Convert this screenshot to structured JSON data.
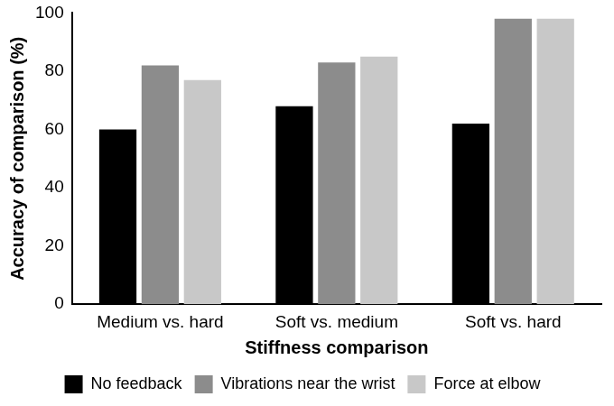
{
  "chart_data": {
    "type": "bar",
    "x_label": "Stiffness comparison",
    "y_label": "Accuracy of comparison (%)",
    "categories": [
      "Medium vs. hard",
      "Soft vs. medium",
      "Soft vs. hard"
    ],
    "series": [
      {
        "name": "No feedback",
        "color": "#000000",
        "values": [
          60,
          68,
          62
        ]
      },
      {
        "name": "Vibrations near the wrist",
        "color": "#8c8c8c",
        "values": [
          82,
          83,
          98
        ]
      },
      {
        "name": "Force at elbow",
        "color": "#c8c8c8",
        "values": [
          77,
          85,
          98
        ]
      }
    ],
    "ylim": [
      0,
      100
    ],
    "yticks": [
      0,
      20,
      40,
      60,
      80,
      100
    ],
    "grid": false,
    "legend": "bottom"
  }
}
